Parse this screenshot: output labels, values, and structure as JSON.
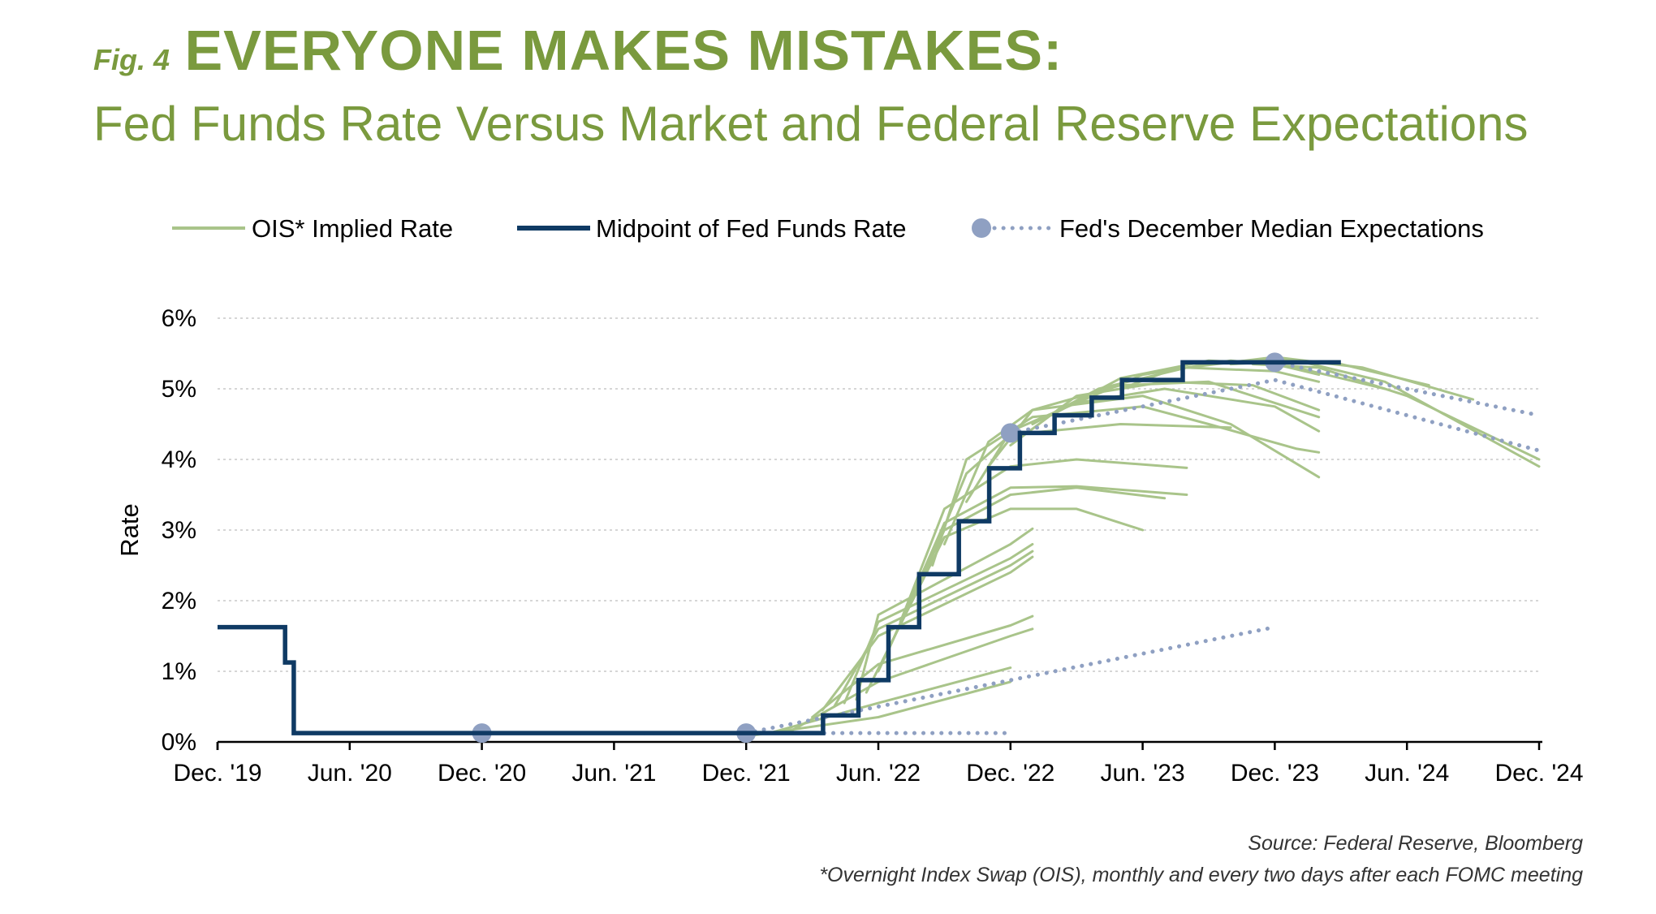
{
  "header": {
    "fig_label": "Fig. 4",
    "title": "EVERYONE MAKES MISTAKES:",
    "subtitle": "Fed Funds Rate Versus Market and Federal Reserve Expectations"
  },
  "footnotes": {
    "source": "Source: Federal Reserve, Bloomberg",
    "ois": "*Overnight Index Swap (OIS), monthly and every two days after each FOMC meeting"
  },
  "colors": {
    "brand_green": "#7a9a3e",
    "ois": "#a9c48a",
    "fed_funds": "#0f3a64",
    "fed_expectations": "#8fa0c2"
  },
  "chart_data": {
    "type": "line",
    "title": "",
    "xlabel": "",
    "ylabel": "Rate",
    "x_unit": "date",
    "xlim": [
      "2019-12",
      "2024-12"
    ],
    "ylim": [
      0,
      6
    ],
    "yticks": [
      0,
      1,
      2,
      3,
      4,
      5,
      6
    ],
    "ytick_labels": [
      "0%",
      "1%",
      "2%",
      "3%",
      "4%",
      "5%",
      "6%"
    ],
    "xticks": [
      "2019-12",
      "2020-06",
      "2020-12",
      "2021-06",
      "2021-12",
      "2022-06",
      "2022-12",
      "2023-06",
      "2023-12",
      "2024-06",
      "2024-12"
    ],
    "xtick_labels": [
      "Dec. '19",
      "Jun. '20",
      "Dec. '20",
      "Jun. '21",
      "Dec. '21",
      "Jun. '22",
      "Dec. '22",
      "Jun. '23",
      "Dec. '23",
      "Jun. '24",
      "Dec. '24"
    ],
    "grid": true,
    "legend": {
      "position": "top",
      "entries": [
        "OIS* Implied Rate",
        "Midpoint of Fed Funds Rate",
        "Fed's December Median Expectations"
      ]
    },
    "series": [
      {
        "name": "Midpoint of Fed Funds Rate",
        "style": "step",
        "points": [
          [
            "2019-12-01",
            1.625
          ],
          [
            "2020-03-03",
            1.625
          ],
          [
            "2020-03-03",
            1.125
          ],
          [
            "2020-03-15",
            1.125
          ],
          [
            "2020-03-15",
            0.125
          ],
          [
            "2022-03-16",
            0.125
          ],
          [
            "2022-03-16",
            0.375
          ],
          [
            "2022-05-04",
            0.375
          ],
          [
            "2022-05-04",
            0.875
          ],
          [
            "2022-06-15",
            0.875
          ],
          [
            "2022-06-15",
            1.625
          ],
          [
            "2022-07-27",
            1.625
          ],
          [
            "2022-07-27",
            2.375
          ],
          [
            "2022-09-21",
            2.375
          ],
          [
            "2022-09-21",
            3.125
          ],
          [
            "2022-11-02",
            3.125
          ],
          [
            "2022-11-02",
            3.875
          ],
          [
            "2022-12-14",
            3.875
          ],
          [
            "2022-12-14",
            4.375
          ],
          [
            "2023-02-01",
            4.375
          ],
          [
            "2023-02-01",
            4.625
          ],
          [
            "2023-03-22",
            4.625
          ],
          [
            "2023-03-22",
            4.875
          ],
          [
            "2023-05-03",
            4.875
          ],
          [
            "2023-05-03",
            5.125
          ],
          [
            "2023-07-26",
            5.125
          ],
          [
            "2023-07-26",
            5.375
          ],
          [
            "2024-03-01",
            5.375
          ]
        ]
      },
      {
        "name": "Fed's December Median Expectations",
        "style": "dotted-with-markers",
        "segments": [
          {
            "marker": [
              "2020-12-01",
              0.125
            ],
            "points": [
              [
                "2020-12-01",
                0.125
              ],
              [
                "2021-12-01",
                0.125
              ],
              [
                "2022-12-01",
                0.125
              ]
            ]
          },
          {
            "marker": [
              "2021-12-01",
              0.125
            ],
            "points": [
              [
                "2021-12-01",
                0.125
              ],
              [
                "2022-12-01",
                0.875
              ],
              [
                "2023-12-01",
                1.625
              ]
            ]
          },
          {
            "marker": [
              "2022-12-01",
              4.375
            ],
            "points": [
              [
                "2022-12-01",
                4.375
              ],
              [
                "2023-12-01",
                5.125
              ],
              [
                "2024-12-01",
                4.125
              ]
            ]
          },
          {
            "marker": [
              "2023-12-01",
              5.375
            ],
            "points": [
              [
                "2023-12-01",
                5.375
              ],
              [
                "2024-12-01",
                4.625
              ]
            ]
          }
        ]
      },
      {
        "name": "OIS* Implied Rate",
        "style": "line-fan",
        "curves": [
          [
            [
              "2021-12-01",
              0.08
            ],
            [
              "2022-06-01",
              0.35
            ],
            [
              "2022-12-01",
              0.85
            ]
          ],
          [
            [
              "2022-01-01",
              0.12
            ],
            [
              "2022-06-01",
              0.55
            ],
            [
              "2022-12-01",
              1.05
            ]
          ],
          [
            [
              "2022-02-01",
              0.15
            ],
            [
              "2022-06-01",
              0.85
            ],
            [
              "2022-12-01",
              1.5
            ],
            [
              "2023-01-01",
              1.6
            ]
          ],
          [
            [
              "2022-03-01",
              0.35
            ],
            [
              "2022-06-01",
              1.1
            ],
            [
              "2022-12-01",
              1.65
            ],
            [
              "2023-01-01",
              1.78
            ]
          ],
          [
            [
              "2022-03-15",
              0.45
            ],
            [
              "2022-06-01",
              1.5
            ],
            [
              "2022-12-01",
              2.4
            ],
            [
              "2023-01-01",
              2.62
            ]
          ],
          [
            [
              "2022-04-01",
              0.5
            ],
            [
              "2022-06-01",
              1.6
            ],
            [
              "2022-12-01",
              2.5
            ],
            [
              "2023-01-01",
              2.7
            ]
          ],
          [
            [
              "2022-04-15",
              0.55
            ],
            [
              "2022-06-01",
              1.7
            ],
            [
              "2022-12-01",
              2.6
            ],
            [
              "2023-01-01",
              2.8
            ]
          ],
          [
            [
              "2022-05-01",
              0.6
            ],
            [
              "2022-06-01",
              1.8
            ],
            [
              "2022-12-01",
              2.8
            ],
            [
              "2023-01-01",
              3.02
            ]
          ],
          [
            [
              "2022-05-15",
              0.7
            ],
            [
              "2022-09-01",
              2.9
            ],
            [
              "2022-12-01",
              3.3
            ],
            [
              "2023-03-01",
              3.3
            ],
            [
              "2023-06-01",
              3.0
            ]
          ],
          [
            [
              "2022-06-01",
              1.0
            ],
            [
              "2022-09-01",
              3.0
            ],
            [
              "2022-12-01",
              3.5
            ],
            [
              "2023-03-01",
              3.6
            ],
            [
              "2023-07-01",
              3.45
            ]
          ],
          [
            [
              "2022-06-15",
              1.3
            ],
            [
              "2022-09-01",
              3.1
            ],
            [
              "2022-12-01",
              3.6
            ],
            [
              "2023-03-01",
              3.62
            ],
            [
              "2023-08-01",
              3.5
            ]
          ],
          [
            [
              "2022-07-01",
              1.7
            ],
            [
              "2022-09-01",
              3.3
            ],
            [
              "2022-12-01",
              3.9
            ],
            [
              "2023-03-01",
              4.0
            ],
            [
              "2023-08-01",
              3.88
            ]
          ],
          [
            [
              "2022-08-01",
              2.3
            ],
            [
              "2022-10-01",
              3.8
            ],
            [
              "2022-12-01",
              4.35
            ],
            [
              "2023-05-01",
              4.5
            ],
            [
              "2023-10-01",
              4.45
            ]
          ],
          [
            [
              "2022-08-15",
              2.5
            ],
            [
              "2022-10-01",
              4.0
            ],
            [
              "2023-01-01",
              4.6
            ],
            [
              "2023-06-01",
              4.75
            ],
            [
              "2023-09-01",
              4.5
            ],
            [
              "2024-01-01",
              4.15
            ],
            [
              "2024-02-01",
              4.1
            ]
          ],
          [
            [
              "2022-09-01",
              2.8
            ],
            [
              "2022-11-01",
              4.25
            ],
            [
              "2023-01-01",
              4.7
            ],
            [
              "2023-06-01",
              4.9
            ],
            [
              "2023-10-01",
              4.5
            ],
            [
              "2024-02-01",
              3.75
            ]
          ],
          [
            [
              "2022-10-01",
              3.4
            ],
            [
              "2022-12-01",
              4.4
            ],
            [
              "2023-03-01",
              4.8
            ],
            [
              "2023-07-01",
              5.0
            ],
            [
              "2023-12-01",
              4.75
            ],
            [
              "2024-02-01",
              4.4
            ]
          ],
          [
            [
              "2022-11-01",
              3.9
            ],
            [
              "2023-01-01",
              4.7
            ],
            [
              "2023-05-01",
              5.05
            ],
            [
              "2023-09-01",
              5.1
            ],
            [
              "2024-02-01",
              4.6
            ]
          ],
          [
            [
              "2022-12-01",
              4.2
            ],
            [
              "2023-03-01",
              4.9
            ],
            [
              "2023-07-01",
              5.1
            ],
            [
              "2023-11-01",
              5.05
            ],
            [
              "2024-02-01",
              4.7
            ]
          ],
          [
            [
              "2023-01-01",
              4.5
            ],
            [
              "2023-04-01",
              5.0
            ],
            [
              "2023-08-01",
              5.3
            ],
            [
              "2023-12-01",
              5.25
            ],
            [
              "2024-02-01",
              5.1
            ]
          ],
          [
            [
              "2023-02-01",
              4.65
            ],
            [
              "2023-05-01",
              5.15
            ],
            [
              "2023-09-01",
              5.4
            ],
            [
              "2023-12-01",
              5.35
            ],
            [
              "2024-02-01",
              5.2
            ]
          ],
          [
            [
              "2023-03-01",
              4.8
            ],
            [
              "2023-06-01",
              5.2
            ],
            [
              "2023-10-01",
              5.4
            ],
            [
              "2024-01-01",
              5.3
            ],
            [
              "2024-05-01",
              5.0
            ]
          ],
          [
            [
              "2023-05-01",
              5.0
            ],
            [
              "2023-08-01",
              5.35
            ],
            [
              "2023-12-01",
              5.42
            ],
            [
              "2024-03-01",
              5.35
            ],
            [
              "2024-07-01",
              5.05
            ]
          ],
          [
            [
              "2023-08-01",
              5.3
            ],
            [
              "2023-12-01",
              5.45
            ],
            [
              "2024-04-01",
              5.3
            ],
            [
              "2024-09-01",
              4.85
            ]
          ],
          [
            [
              "2023-10-01",
              5.35
            ],
            [
              "2024-01-01",
              5.4
            ],
            [
              "2024-05-01",
              5.1
            ],
            [
              "2024-12-01",
              3.9
            ]
          ],
          [
            [
              "2023-11-01",
              5.35
            ],
            [
              "2024-02-01",
              5.3
            ],
            [
              "2024-06-01",
              4.9
            ],
            [
              "2024-12-01",
              4.0
            ]
          ]
        ]
      }
    ]
  }
}
